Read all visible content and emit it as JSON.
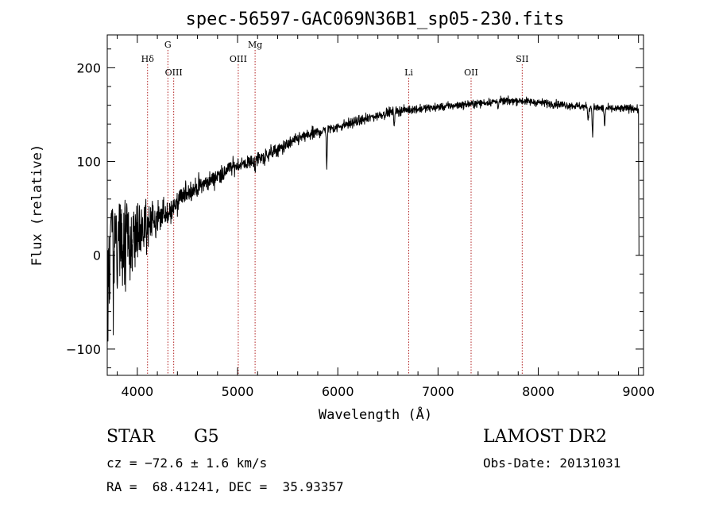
{
  "chart_data": {
    "type": "line",
    "title": "spec-56597-GAC069N36B1_sp05-230.fits",
    "xlabel": "Wavelength (Å)",
    "ylabel": "Flux (relative)",
    "xlim": [
      3700,
      9050
    ],
    "ylim": [
      -128,
      235
    ],
    "xticks": [
      4000,
      5000,
      6000,
      7000,
      8000,
      9000
    ],
    "yticks": [
      -100,
      0,
      100,
      200
    ],
    "grid": false,
    "line_color": "#000000",
    "marker_color": "#b22222",
    "lines": [
      {
        "label": "Hδ",
        "x": 4102,
        "row": 1
      },
      {
        "label": "G",
        "x": 4305,
        "row": 0
      },
      {
        "label": "OIII",
        "x": 4363,
        "row": 2
      },
      {
        "label": "OIII",
        "x": 5007,
        "row": 1
      },
      {
        "label": "Mg",
        "x": 5175,
        "row": 0
      },
      {
        "label": "Li",
        "x": 6708,
        "row": 2
      },
      {
        "label": "OII",
        "x": 7330,
        "row": 2
      },
      {
        "label": "SII",
        "x": 7840,
        "row": 1
      }
    ],
    "continuum": [
      [
        3700,
        0
      ],
      [
        3800,
        5
      ],
      [
        3900,
        15
      ],
      [
        4000,
        25
      ],
      [
        4100,
        33
      ],
      [
        4200,
        38
      ],
      [
        4300,
        45
      ],
      [
        4400,
        55
      ],
      [
        4500,
        68
      ],
      [
        4600,
        72
      ],
      [
        4700,
        78
      ],
      [
        4800,
        85
      ],
      [
        4900,
        92
      ],
      [
        5000,
        96
      ],
      [
        5100,
        98
      ],
      [
        5200,
        103
      ],
      [
        5300,
        108
      ],
      [
        5400,
        112
      ],
      [
        5500,
        118
      ],
      [
        5600,
        124
      ],
      [
        5700,
        128
      ],
      [
        5800,
        131
      ],
      [
        5900,
        134
      ],
      [
        6000,
        137
      ],
      [
        6100,
        140
      ],
      [
        6200,
        143
      ],
      [
        6300,
        146
      ],
      [
        6400,
        149
      ],
      [
        6500,
        152
      ],
      [
        6600,
        154
      ],
      [
        6700,
        155
      ],
      [
        6800,
        156
      ],
      [
        6900,
        157
      ],
      [
        7000,
        158
      ],
      [
        7200,
        160
      ],
      [
        7400,
        162
      ],
      [
        7600,
        164
      ],
      [
        7800,
        165
      ],
      [
        8000,
        163
      ],
      [
        8200,
        161
      ],
      [
        8400,
        159
      ],
      [
        8600,
        157
      ],
      [
        8800,
        156
      ],
      [
        8950,
        157
      ],
      [
        9000,
        155
      ]
    ],
    "absorption": [
      [
        3933,
        30
      ],
      [
        3968,
        30
      ],
      [
        4102,
        15
      ],
      [
        4305,
        12
      ],
      [
        4861,
        10
      ],
      [
        5175,
        15
      ],
      [
        5270,
        8
      ],
      [
        5890,
        40
      ],
      [
        6563,
        14
      ],
      [
        7600,
        5
      ],
      [
        8498,
        15
      ],
      [
        8542,
        30
      ],
      [
        8662,
        20
      ]
    ],
    "noise_profile": [
      [
        3700,
        55
      ],
      [
        3800,
        45
      ],
      [
        3900,
        35
      ],
      [
        4000,
        25
      ],
      [
        4100,
        18
      ],
      [
        4200,
        14
      ],
      [
        4300,
        12
      ],
      [
        4500,
        8
      ],
      [
        5000,
        6
      ],
      [
        5500,
        5
      ],
      [
        6000,
        4
      ],
      [
        7000,
        3
      ],
      [
        9000,
        3
      ]
    ],
    "red_edge_drop": [
      [
        9000,
        155
      ],
      [
        9005,
        0
      ]
    ]
  },
  "info": {
    "class": "STAR",
    "subclass": "G5",
    "redshift": "cz = −72.6 ± 1.6 km/s",
    "coords": "RA =  68.41241, DEC =  35.93357",
    "survey": "LAMOST DR2",
    "obs_date": "Obs-Date: 20131031"
  }
}
